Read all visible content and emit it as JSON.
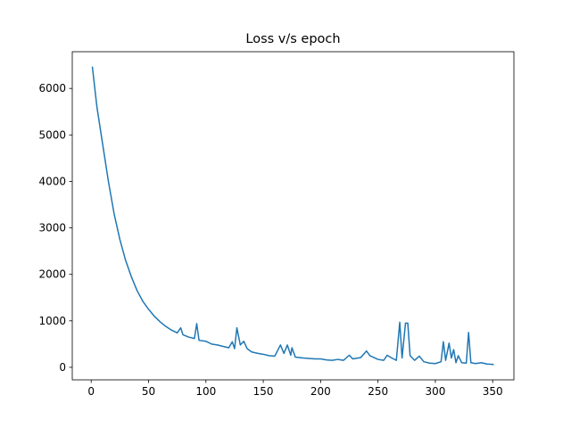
{
  "chart_data": {
    "type": "line",
    "title": "Loss v/s epoch",
    "x": [
      1,
      5,
      10,
      15,
      20,
      25,
      30,
      35,
      40,
      45,
      50,
      55,
      60,
      65,
      70,
      75,
      78,
      80,
      85,
      90,
      92,
      94,
      100,
      105,
      110,
      115,
      120,
      123,
      125,
      127,
      130,
      133,
      136,
      140,
      145,
      150,
      155,
      160,
      165,
      168,
      171,
      174,
      175,
      178,
      185,
      190,
      195,
      200,
      205,
      210,
      215,
      220,
      225,
      228,
      235,
      240,
      243,
      250,
      255,
      258,
      262,
      266,
      269,
      271,
      274,
      276,
      278,
      282,
      286,
      290,
      295,
      300,
      305,
      307,
      309,
      312,
      314,
      316,
      318,
      320,
      323,
      327,
      329,
      331,
      335,
      340,
      345,
      351
    ],
    "series": [
      {
        "color": "#1f77b4",
        "values": [
          6470,
          5600,
          4800,
          4000,
          3300,
          2750,
          2300,
          1950,
          1650,
          1420,
          1250,
          1100,
          980,
          880,
          800,
          740,
          850,
          700,
          650,
          620,
          940,
          580,
          560,
          500,
          480,
          450,
          420,
          550,
          400,
          850,
          480,
          560,
          400,
          330,
          300,
          280,
          250,
          240,
          480,
          300,
          480,
          260,
          420,
          220,
          200,
          190,
          180,
          180,
          160,
          150,
          170,
          150,
          260,
          180,
          210,
          350,
          250,
          170,
          150,
          260,
          200,
          150,
          970,
          200,
          950,
          950,
          250,
          150,
          240,
          120,
          90,
          80,
          120,
          550,
          150,
          520,
          200,
          380,
          100,
          250,
          100,
          90,
          750,
          100,
          80,
          100,
          70,
          60
        ]
      }
    ],
    "xlim": [
      -16.5,
      368.5
    ],
    "xticks": [
      0,
      50,
      100,
      150,
      200,
      250,
      300,
      350
    ],
    "ylim": [
      -270,
      6790
    ],
    "yticks": [
      0,
      1000,
      2000,
      3000,
      4000,
      5000,
      6000
    ],
    "grid": false
  }
}
